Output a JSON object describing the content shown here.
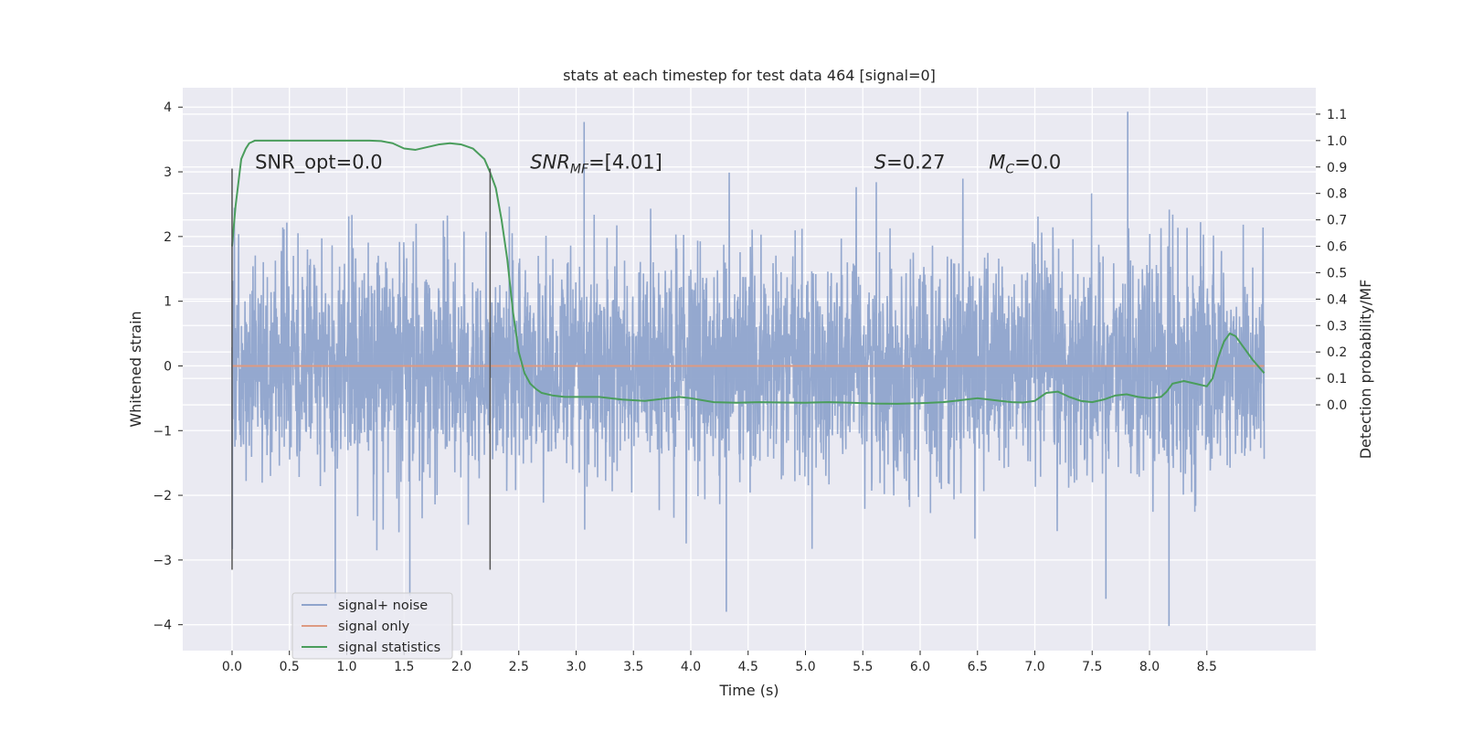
{
  "chart_data": {
    "type": "line",
    "title": "stats at each timestep for test data 464 [signal=0]",
    "xlabel": "Time (s)",
    "ylabel": "Whitened strain",
    "ylabel_right": "Detection probability/MF",
    "xlim": [
      -0.43,
      9.45
    ],
    "ylim": [
      -4.4,
      4.3
    ],
    "ylim_right": [
      -0.93,
      1.2
    ],
    "x_ticks": [
      "0.0",
      "0.5",
      "1.0",
      "1.5",
      "2.0",
      "2.5",
      "3.0",
      "3.5",
      "4.0",
      "4.5",
      "5.0",
      "5.5",
      "6.0",
      "6.5",
      "7.0",
      "7.5",
      "8.0",
      "8.5"
    ],
    "y_ticks": [
      "4",
      "3",
      "2",
      "1",
      "0",
      "−1",
      "−2",
      "−3",
      "−4"
    ],
    "y_ticks_right": [
      "1.1",
      "1.0",
      "0.9",
      "0.8",
      "0.7",
      "0.6",
      "0.5",
      "0.4",
      "0.3",
      "0.2",
      "0.1",
      "0.0"
    ],
    "grid": true,
    "legend_position": "bottom-left",
    "annotations": [
      {
        "prefix": "SNR_opt",
        "value": "=0.0",
        "x": 0.2,
        "y": 3.05
      },
      {
        "prefix": "SNR",
        "sub": "MF",
        "value": "=[4.01]",
        "x": 2.6,
        "y": 3.05
      },
      {
        "prefix": "S",
        "value": "=0.27",
        "x": 5.6,
        "y": 3.05
      },
      {
        "prefix": "M",
        "sub": "C",
        "value": "=0.0",
        "x": 6.6,
        "y": 3.05
      }
    ],
    "vertical_lines": [
      {
        "x": 0.0,
        "y_range": [
          -3.15,
          3.05
        ]
      },
      {
        "x": 2.25,
        "y_range": [
          -3.15,
          3.05
        ]
      }
    ],
    "series": [
      {
        "name": "signal+ noise",
        "color": "#8fa4cc",
        "kind": "noise",
        "x_range": [
          0.0,
          9.0
        ],
        "band": [
          -1.3,
          1.2
        ],
        "extremes": {
          "max": 3.93,
          "min": -4.02
        }
      },
      {
        "name": "signal only",
        "color": "#dd9a82",
        "x": [
          0.0,
          9.0
        ],
        "y": [
          0.0,
          0.0
        ]
      },
      {
        "name": "signal statistics",
        "color": "#4a9d5c",
        "axis": "right",
        "x": [
          0.0,
          0.03,
          0.08,
          0.12,
          0.15,
          0.2,
          0.25,
          0.3,
          0.5,
          0.8,
          1.0,
          1.2,
          1.3,
          1.4,
          1.5,
          1.6,
          1.7,
          1.8,
          1.9,
          2.0,
          2.1,
          2.2,
          2.25,
          2.3,
          2.35,
          2.4,
          2.45,
          2.5,
          2.55,
          2.6,
          2.65,
          2.7,
          2.8,
          2.9,
          3.0,
          3.2,
          3.4,
          3.6,
          3.8,
          3.9,
          4.0,
          4.2,
          4.4,
          4.6,
          4.8,
          5.0,
          5.2,
          5.4,
          5.6,
          5.8,
          6.0,
          6.2,
          6.3,
          6.4,
          6.5,
          6.6,
          6.7,
          6.8,
          6.9,
          7.0,
          7.05,
          7.1,
          7.2,
          7.3,
          7.4,
          7.5,
          7.6,
          7.7,
          7.8,
          7.9,
          8.0,
          8.1,
          8.15,
          8.2,
          8.3,
          8.4,
          8.5,
          8.55,
          8.6,
          8.65,
          8.7,
          8.75,
          8.8,
          8.9,
          9.0
        ],
        "y": [
          0.6,
          0.75,
          0.93,
          0.97,
          0.99,
          1.0,
          1.0,
          1.0,
          1.0,
          1.0,
          1.0,
          1.0,
          0.998,
          0.99,
          0.97,
          0.965,
          0.975,
          0.985,
          0.99,
          0.985,
          0.97,
          0.93,
          0.88,
          0.82,
          0.7,
          0.55,
          0.35,
          0.2,
          0.12,
          0.08,
          0.06,
          0.045,
          0.035,
          0.03,
          0.03,
          0.03,
          0.02,
          0.015,
          0.025,
          0.03,
          0.025,
          0.01,
          0.008,
          0.01,
          0.009,
          0.008,
          0.01,
          0.008,
          0.005,
          0.004,
          0.006,
          0.01,
          0.015,
          0.02,
          0.025,
          0.02,
          0.015,
          0.01,
          0.009,
          0.015,
          0.03,
          0.045,
          0.05,
          0.03,
          0.015,
          0.01,
          0.02,
          0.035,
          0.04,
          0.03,
          0.025,
          0.03,
          0.05,
          0.08,
          0.09,
          0.08,
          0.07,
          0.1,
          0.18,
          0.24,
          0.27,
          0.26,
          0.23,
          0.17,
          0.12
        ]
      }
    ]
  }
}
